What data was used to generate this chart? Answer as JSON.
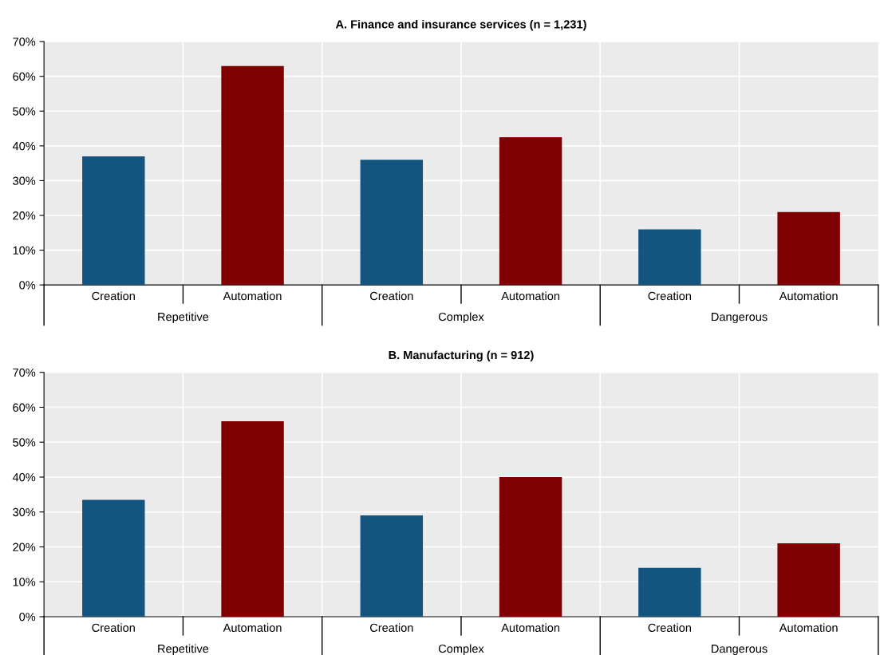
{
  "chart_data": [
    {
      "type": "bar",
      "title": "A. Finance and insurance services (n = 1,231)",
      "categories": [
        "Creation",
        "Automation",
        "Creation",
        "Automation",
        "Creation",
        "Automation"
      ],
      "values": [
        37,
        63,
        36,
        42.5,
        16,
        21
      ],
      "colors": [
        "#14557f",
        "#7f0000",
        "#14557f",
        "#7f0000",
        "#14557f",
        "#7f0000"
      ],
      "ylim": [
        0,
        70
      ],
      "yticks": [
        {
          "value": 0,
          "label": "0%"
        },
        {
          "value": 10,
          "label": "10%"
        },
        {
          "value": 20,
          "label": "20%"
        },
        {
          "value": 30,
          "label": "30%"
        },
        {
          "value": 40,
          "label": "40%"
        },
        {
          "value": 50,
          "label": "50%"
        },
        {
          "value": 60,
          "label": "60%"
        },
        {
          "value": 70,
          "label": "70%"
        }
      ],
      "annotations": [
        "Repetitive",
        "Complex",
        "Dangerous"
      ],
      "grid": "y"
    },
    {
      "type": "bar",
      "title": "B. Manufacturing (n = 912)",
      "categories": [
        "Creation",
        "Automation",
        "Creation",
        "Automation",
        "Creation",
        "Automation"
      ],
      "values": [
        33.5,
        56,
        29,
        40,
        14,
        21
      ],
      "colors": [
        "#14557f",
        "#7f0000",
        "#14557f",
        "#7f0000",
        "#14557f",
        "#7f0000"
      ],
      "ylim": [
        0,
        70
      ],
      "yticks": [
        {
          "value": 0,
          "label": "0%"
        },
        {
          "value": 10,
          "label": "10%"
        },
        {
          "value": 20,
          "label": "20%"
        },
        {
          "value": 30,
          "label": "30%"
        },
        {
          "value": 40,
          "label": "40%"
        },
        {
          "value": 50,
          "label": "50%"
        },
        {
          "value": 60,
          "label": "60%"
        },
        {
          "value": 70,
          "label": "70%"
        }
      ],
      "annotations": [
        "Repetitive",
        "Complex",
        "Dangerous"
      ],
      "grid": "y"
    }
  ]
}
